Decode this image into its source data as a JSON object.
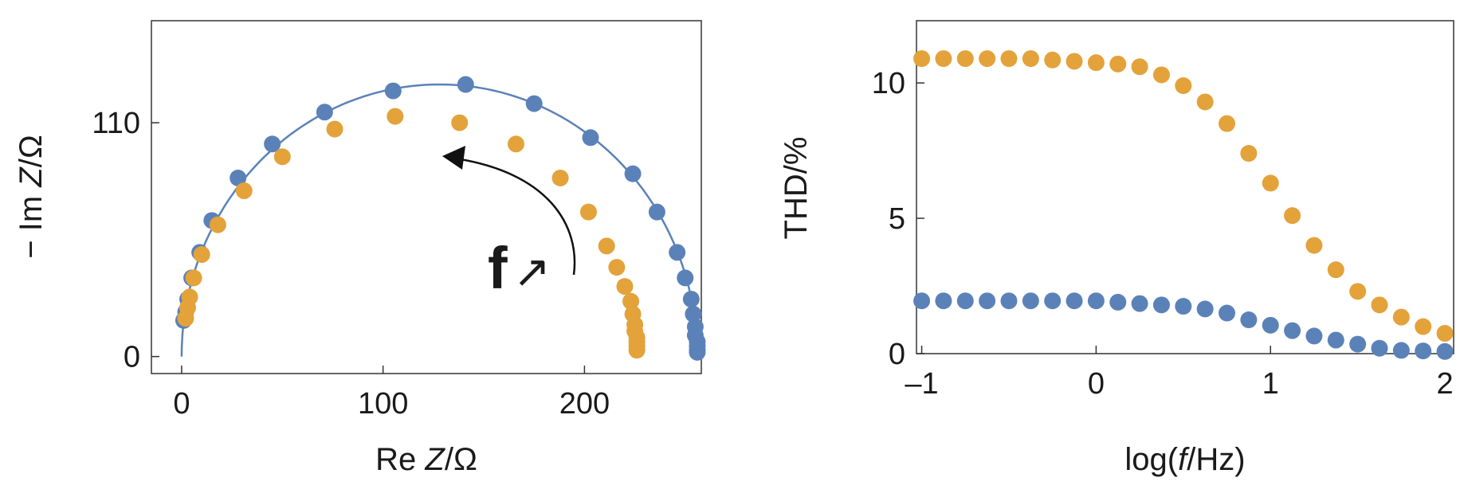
{
  "chart_data": [
    {
      "type": "scatter",
      "xlabel_prefix": "Re ",
      "xlabel_var": "Z",
      "xlabel_suffix": "/Ω",
      "ylabel_prefix": "− Im ",
      "ylabel_var": "Z",
      "ylabel_suffix": "/Ω",
      "xlim": [
        -15,
        258
      ],
      "ylim": [
        -8,
        158
      ],
      "xticks": [
        0,
        100,
        200
      ],
      "yticks": [
        0,
        110
      ],
      "annotation": {
        "letter": "f",
        "arrow_glyph": "↗"
      },
      "fit_curve": {
        "shape": "semicircle",
        "center_re": 128,
        "radius": 128,
        "color": "#5b82b8"
      },
      "series": [
        {
          "color": "#5b82b8",
          "points": [
            [
              256,
              2
            ],
            [
              256,
              3
            ],
            [
              256,
              5
            ],
            [
              256,
              7
            ],
            [
              255,
              10
            ],
            [
              255,
              14
            ],
            [
              254,
              20
            ],
            [
              253,
              27
            ],
            [
              250,
              37
            ],
            [
              246,
              49
            ],
            [
              236,
              68
            ],
            [
              224,
              86
            ],
            [
              203,
              103
            ],
            [
              175,
              119
            ],
            [
              141,
              128
            ],
            [
              105,
              125
            ],
            [
              71,
              115
            ],
            [
              45,
              100
            ],
            [
              28,
              84
            ],
            [
              15,
              64
            ],
            [
              9,
              49
            ],
            [
              5,
              37
            ],
            [
              3,
              27
            ],
            [
              2,
              21
            ],
            [
              1,
              17
            ]
          ]
        },
        {
          "color": "#e3a23a",
          "points": [
            [
              226,
              3
            ],
            [
              226,
              5
            ],
            [
              226,
              7
            ],
            [
              226,
              9
            ],
            [
              225,
              12
            ],
            [
              225,
              15
            ],
            [
              224,
              20
            ],
            [
              223,
              26
            ],
            [
              220,
              33
            ],
            [
              216,
              42
            ],
            [
              211,
              52
            ],
            [
              202,
              68
            ],
            [
              188,
              84
            ],
            [
              166,
              100
            ],
            [
              138,
              110
            ],
            [
              106,
              113
            ],
            [
              76,
              107
            ],
            [
              50,
              94
            ],
            [
              31,
              78
            ],
            [
              18,
              62
            ],
            [
              10,
              48
            ],
            [
              6,
              37
            ],
            [
              4,
              28
            ],
            [
              3,
              23
            ],
            [
              2,
              18
            ]
          ]
        }
      ]
    },
    {
      "type": "scatter",
      "ylabel": "THD/%",
      "xlabel_prefix": "log(",
      "xlabel_var": "f",
      "xlabel_suffix": "/Hz)",
      "xlim": [
        -1.03,
        2.05
      ],
      "ylim": [
        0,
        12.3
      ],
      "xticks": [
        -1,
        0,
        1,
        2
      ],
      "xtick_labels": [
        "–1",
        "0",
        "1",
        "2"
      ],
      "yticks": [
        0,
        5,
        10
      ],
      "series": [
        {
          "color": "#e3a23a",
          "x": [
            -1.0,
            -0.875,
            -0.75,
            -0.625,
            -0.5,
            -0.375,
            -0.25,
            -0.125,
            0.0,
            0.125,
            0.25,
            0.375,
            0.5,
            0.625,
            0.75,
            0.875,
            1.0,
            1.125,
            1.25,
            1.375,
            1.5,
            1.625,
            1.75,
            1.875,
            2.0
          ],
          "y": [
            10.9,
            10.9,
            10.9,
            10.9,
            10.9,
            10.9,
            10.85,
            10.8,
            10.75,
            10.7,
            10.6,
            10.3,
            9.9,
            9.3,
            8.5,
            7.4,
            6.3,
            5.1,
            4.0,
            3.1,
            2.3,
            1.8,
            1.35,
            1.0,
            0.75
          ]
        },
        {
          "color": "#5b82b8",
          "x": [
            -1.0,
            -0.875,
            -0.75,
            -0.625,
            -0.5,
            -0.375,
            -0.25,
            -0.125,
            0.0,
            0.125,
            0.25,
            0.375,
            0.5,
            0.625,
            0.75,
            0.875,
            1.0,
            1.125,
            1.25,
            1.375,
            1.5,
            1.625,
            1.75,
            1.875,
            2.0
          ],
          "y": [
            1.95,
            1.95,
            1.95,
            1.95,
            1.95,
            1.95,
            1.95,
            1.95,
            1.95,
            1.9,
            1.85,
            1.8,
            1.75,
            1.65,
            1.5,
            1.25,
            1.05,
            0.85,
            0.65,
            0.5,
            0.35,
            0.2,
            0.12,
            0.1,
            0.08
          ]
        }
      ]
    }
  ]
}
